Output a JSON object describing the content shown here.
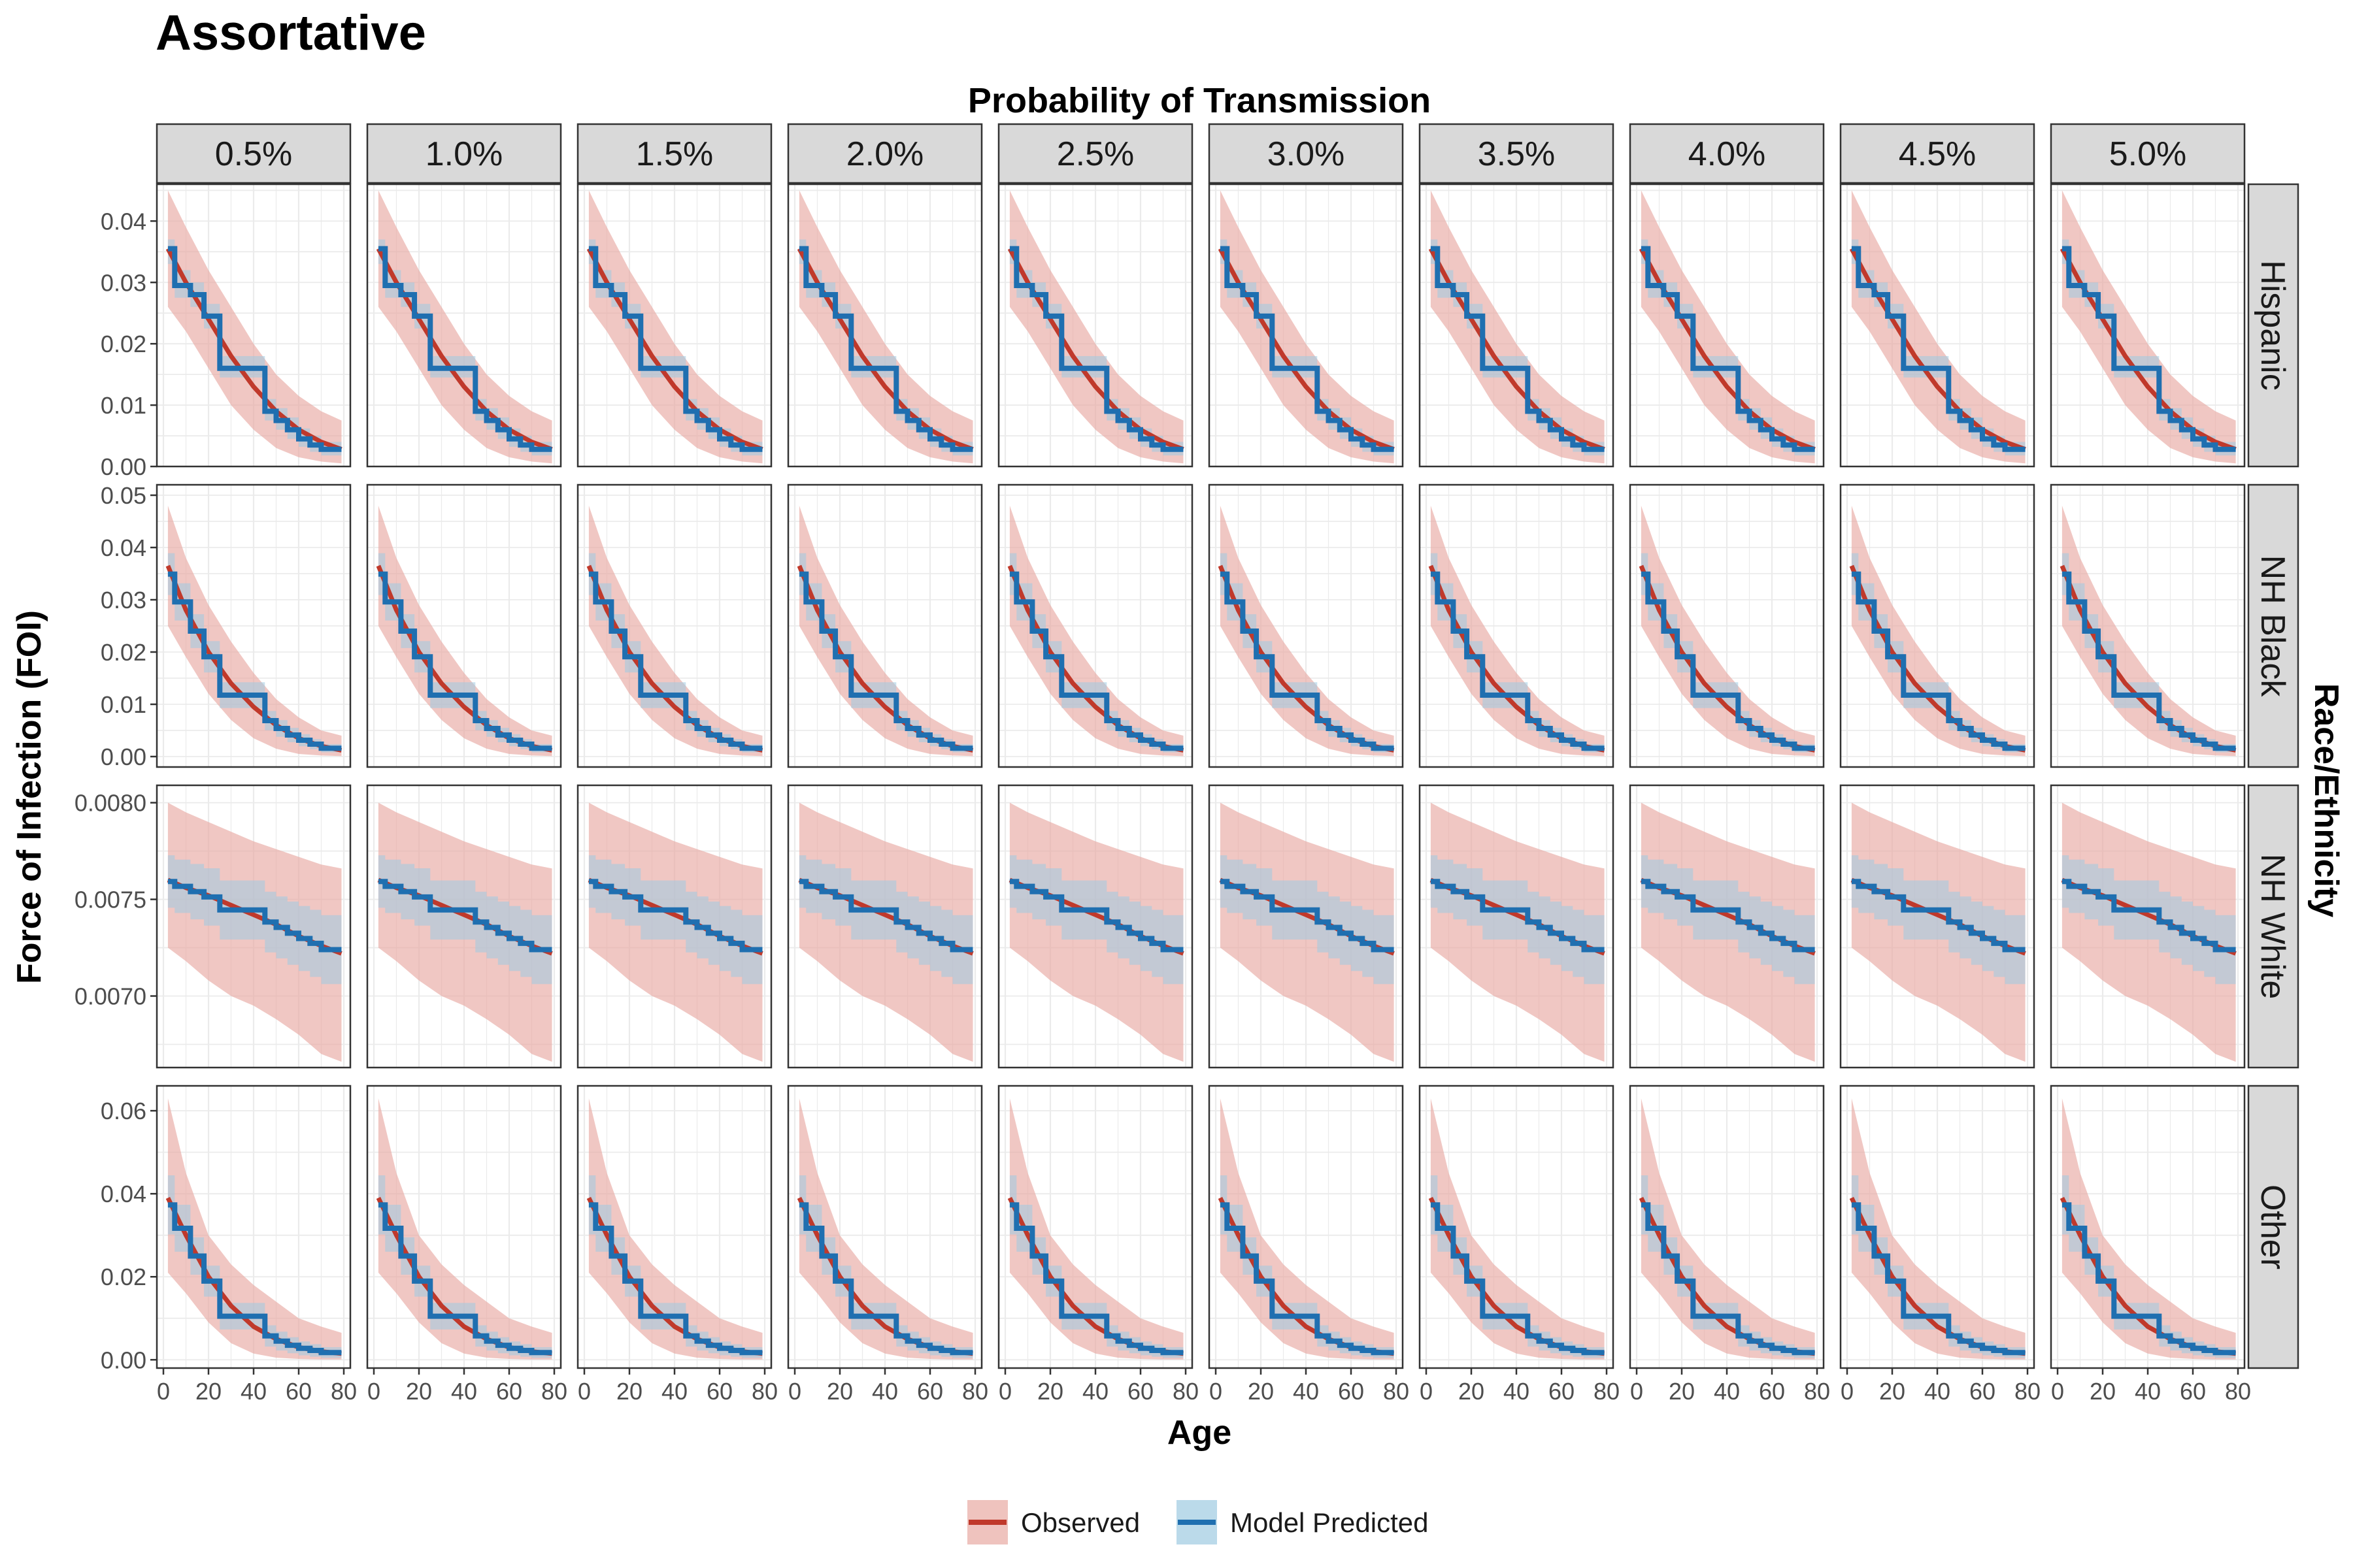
{
  "chart_data": {
    "type": "line",
    "title": "Assortative",
    "col_group_title": "Probability of Transmission",
    "row_group_title": "Race/Ethnicity",
    "xlabel": "Age",
    "ylabel": "Force of Infection (FOI)",
    "xlim": [
      0,
      80
    ],
    "x_ticks": [
      0,
      20,
      40,
      60,
      80
    ],
    "columns": [
      "0.5%",
      "1.0%",
      "1.5%",
      "2.0%",
      "2.5%",
      "3.0%",
      "3.5%",
      "4.0%",
      "4.5%",
      "5.0%"
    ],
    "legend": {
      "position": "bottom",
      "entries": [
        {
          "name": "Observed",
          "line_color": "#c0392b",
          "fill_color": "#e8a9a3"
        },
        {
          "name": "Model Predicted",
          "line_color": "#1f6fb0",
          "fill_color": "#9ecae1"
        }
      ]
    },
    "grid": true,
    "rows": [
      {
        "name": "Hispanic",
        "ylim": [
          0,
          0.046
        ],
        "y_ticks": [
          0.0,
          0.01,
          0.02,
          0.03,
          0.04
        ],
        "y_tick_labels": [
          "0.00",
          "0.01",
          "0.02",
          "0.03",
          "0.04"
        ],
        "observed": {
          "x": [
            2,
            10,
            20,
            30,
            40,
            50,
            60,
            70,
            79
          ],
          "y": [
            0.0355,
            0.03,
            0.024,
            0.018,
            0.013,
            0.009,
            0.006,
            0.004,
            0.0028
          ]
        },
        "observed_lower": [
          0.026,
          0.022,
          0.016,
          0.01,
          0.006,
          0.003,
          0.0015,
          0.0008,
          0.0005
        ],
        "observed_upper": [
          0.045,
          0.039,
          0.032,
          0.026,
          0.02,
          0.015,
          0.0115,
          0.009,
          0.0075
        ],
        "predicted_steps": [
          {
            "x0": 2,
            "x1": 5,
            "y": 0.0355,
            "lo": 0.033,
            "hi": 0.037
          },
          {
            "x0": 5,
            "x1": 12,
            "y": 0.0295,
            "lo": 0.0275,
            "hi": 0.032
          },
          {
            "x0": 12,
            "x1": 18,
            "y": 0.028,
            "lo": 0.026,
            "hi": 0.03
          },
          {
            "x0": 18,
            "x1": 25,
            "y": 0.0245,
            "lo": 0.0225,
            "hi": 0.0265
          },
          {
            "x0": 25,
            "x1": 45,
            "y": 0.016,
            "lo": 0.0145,
            "hi": 0.018
          },
          {
            "x0": 45,
            "x1": 50,
            "y": 0.009,
            "lo": 0.0075,
            "hi": 0.011
          },
          {
            "x0": 50,
            "x1": 55,
            "y": 0.0075,
            "lo": 0.006,
            "hi": 0.0095
          },
          {
            "x0": 55,
            "x1": 60,
            "y": 0.006,
            "lo": 0.0045,
            "hi": 0.008
          },
          {
            "x0": 60,
            "x1": 65,
            "y": 0.0045,
            "lo": 0.0032,
            "hi": 0.0062
          },
          {
            "x0": 65,
            "x1": 70,
            "y": 0.0035,
            "lo": 0.0024,
            "hi": 0.005
          },
          {
            "x0": 70,
            "x1": 79,
            "y": 0.0028,
            "lo": 0.0018,
            "hi": 0.004
          }
        ]
      },
      {
        "name": "NH Black",
        "ylim": [
          -0.002,
          0.052
        ],
        "y_ticks": [
          0.0,
          0.01,
          0.02,
          0.03,
          0.04,
          0.05
        ],
        "y_tick_labels": [
          "0.00",
          "0.01",
          "0.02",
          "0.03",
          "0.04",
          "0.05"
        ],
        "observed": {
          "x": [
            2,
            10,
            20,
            30,
            40,
            50,
            60,
            70,
            79
          ],
          "y": [
            0.0365,
            0.028,
            0.02,
            0.014,
            0.0095,
            0.006,
            0.0035,
            0.002,
            0.0012
          ]
        },
        "observed_lower": [
          0.025,
          0.019,
          0.012,
          0.007,
          0.0035,
          0.0015,
          0.0005,
          0.0002,
          0.0001
        ],
        "observed_upper": [
          0.048,
          0.038,
          0.029,
          0.022,
          0.016,
          0.011,
          0.0075,
          0.005,
          0.004
        ]
      },
      {
        "name": "NH White",
        "ylim": [
          0.00663,
          0.00809
        ],
        "y_ticks": [
          0.007,
          0.0075,
          0.008
        ],
        "y_tick_labels": [
          "0.0070",
          "0.0075",
          "0.0080"
        ],
        "observed": {
          "x": [
            2,
            10,
            20,
            30,
            40,
            50,
            60,
            70,
            79
          ],
          "y": [
            0.0076,
            0.00756,
            0.00752,
            0.00747,
            0.00742,
            0.00737,
            0.00731,
            0.00726,
            0.00722
          ]
        },
        "observed_lower": [
          0.00725,
          0.00718,
          0.00708,
          0.007,
          0.00695,
          0.00688,
          0.0068,
          0.0067,
          0.00666
        ],
        "observed_upper": [
          0.008,
          0.00795,
          0.0079,
          0.00785,
          0.0078,
          0.00776,
          0.00772,
          0.00768,
          0.00766
        ]
      },
      {
        "name": "Other",
        "ylim": [
          -0.002,
          0.066
        ],
        "y_ticks": [
          0.0,
          0.02,
          0.04,
          0.06
        ],
        "y_tick_labels": [
          "0.00",
          "0.02",
          "0.04",
          "0.06"
        ],
        "observed": {
          "x": [
            2,
            10,
            20,
            30,
            40,
            50,
            60,
            70,
            79
          ],
          "y": [
            0.039,
            0.03,
            0.02,
            0.013,
            0.008,
            0.005,
            0.003,
            0.002,
            0.0015
          ]
        },
        "observed_lower": [
          0.021,
          0.016,
          0.009,
          0.004,
          0.0015,
          0.0005,
          0.0002,
          0.0001,
          0.0001
        ],
        "observed_upper": [
          0.063,
          0.045,
          0.03,
          0.023,
          0.018,
          0.014,
          0.01,
          0.008,
          0.0065
        ]
      }
    ]
  }
}
